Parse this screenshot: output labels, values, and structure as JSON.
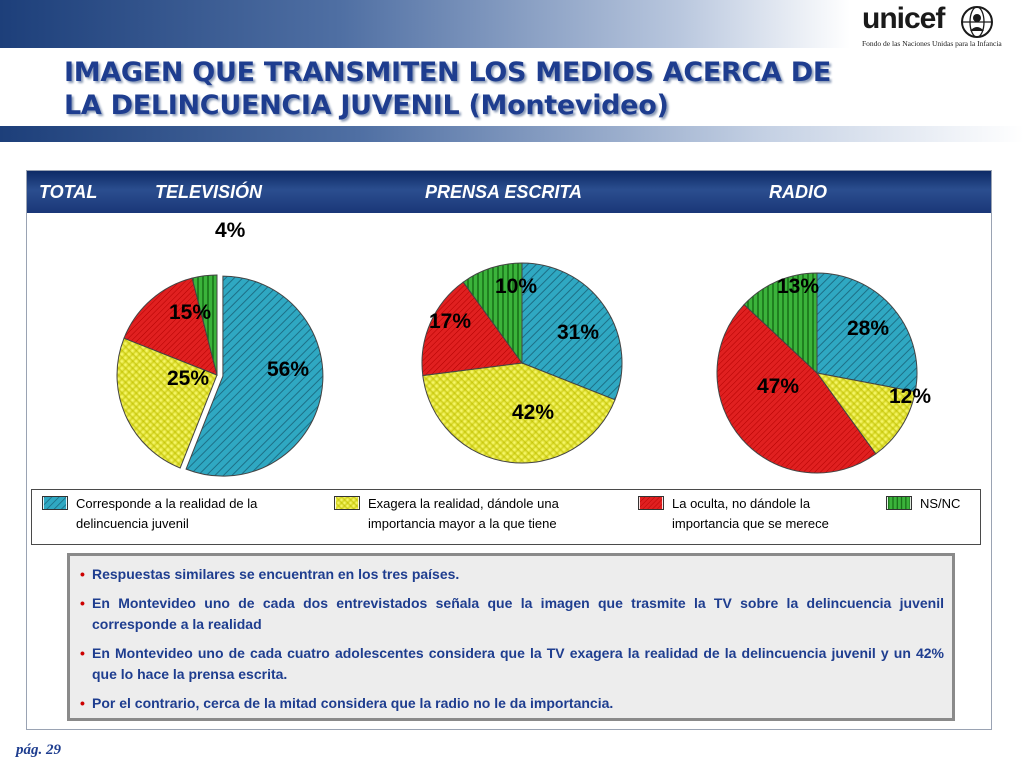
{
  "logo": {
    "wordmark": "unicef",
    "subtitle": "Fondo de las Naciones Unidas para la Infancia"
  },
  "page_title_lines": [
    "IMAGEN QUE TRANSMITEN LOS MEDIOS ACERCA DE",
    "LA DELINCUENCIA JUVENIL (Montevideo)"
  ],
  "panel_header": {
    "total": "TOTAL",
    "television": "TELEVISIÓN",
    "prensa": "PRENSA ESCRITA",
    "radio": "RADIO"
  },
  "colors": {
    "corresponde": "#2fa8c2",
    "exagera": "#f2f21e",
    "oculta": "#e02020",
    "nsnc": "#2f9e2f",
    "title": "#1e3d8f",
    "header_bg": "#1a3778"
  },
  "legend": [
    {
      "key": "corresponde",
      "text_line1": "Corresponde a la realidad de la",
      "text_line2": "delincuencia juvenil"
    },
    {
      "key": "exagera",
      "text_line1": "Exagera la realidad, dándole una",
      "text_line2": "importancia mayor a la que tiene"
    },
    {
      "key": "oculta",
      "text_line1": "La oculta, no dándole la",
      "text_line2": "importancia que se merece"
    },
    {
      "key": "nsnc",
      "text_line1": "NS/NC",
      "text_line2": ""
    }
  ],
  "chart_data": [
    {
      "type": "pie",
      "title": "TELEVISIÓN",
      "categories": [
        "Corresponde a la realidad de la delincuencia juvenil",
        "Exagera la realidad, dándole una importancia mayor a la que tiene",
        "La oculta, no dándole la importancia que se merece",
        "NS/NC"
      ],
      "values": [
        56,
        25,
        15,
        4
      ],
      "labels": [
        "56%",
        "25%",
        "15%",
        "4%"
      ]
    },
    {
      "type": "pie",
      "title": "PRENSA ESCRITA",
      "categories": [
        "Corresponde a la realidad de la delincuencia juvenil",
        "Exagera la realidad, dándole una importancia mayor a la que tiene",
        "La oculta, no dándole la importancia que se merece",
        "NS/NC"
      ],
      "values": [
        31,
        42,
        17,
        10
      ],
      "labels": [
        "31%",
        "42%",
        "17%",
        "10%"
      ]
    },
    {
      "type": "pie",
      "title": "RADIO",
      "categories": [
        "Corresponde a la realidad de la delincuencia juvenil",
        "Exagera la realidad, dándole una importancia mayor a la que tiene",
        "La oculta, no dándole la importancia que se merece",
        "NS/NC"
      ],
      "values": [
        28,
        12,
        47,
        13
      ],
      "labels": [
        "28%",
        "12%",
        "47%",
        "13%"
      ]
    }
  ],
  "notes": [
    "Respuestas similares se encuentran en los tres países.",
    "En Montevideo uno de cada dos entrevistados señala que la imagen que trasmite la TV sobre la delincuencia juvenil corresponde a la realidad",
    "En Montevideo uno de cada cuatro adolescentes considera que la TV exagera la realidad de la delincuencia juvenil y un 42% que lo hace la prensa escrita.",
    "Por el contrario, cerca de la mitad considera que la radio no le da importancia."
  ],
  "footer": "pág. 29"
}
